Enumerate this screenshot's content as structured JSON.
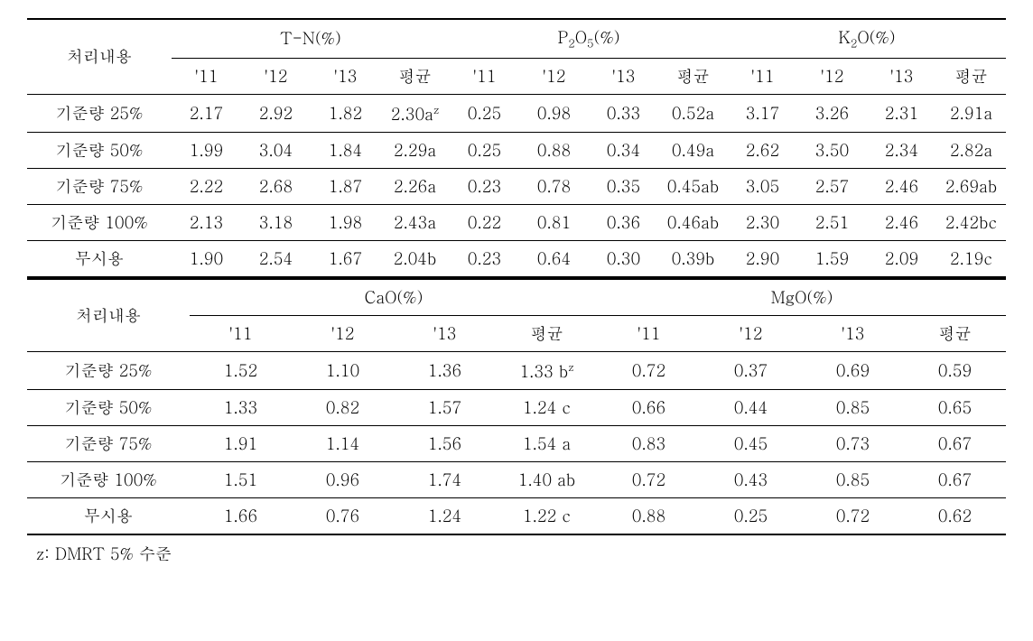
{
  "top_header_label": "처리내용",
  "top_groups": [
    {
      "name_html": "T-N(%)"
    },
    {
      "name_html": "P<span class=\"sub\">2</span>O<span class=\"sub\">5</span>(%)"
    },
    {
      "name_html": "K<span class=\"sub\">2</span>O(%)"
    }
  ],
  "top_subheaders": [
    "'11",
    "'12",
    "'13",
    "평균",
    "'11",
    "'12",
    "'13",
    "평균",
    "'11",
    "'12",
    "'13",
    "평균"
  ],
  "top_rows": [
    {
      "label": "기준량 25%",
      "vals": [
        "2.17",
        "2.92",
        "1.82",
        "2.30a<span class=\"sup\">z</span>",
        "0.25",
        "0.98",
        "0.33",
        "0.52a",
        "3.17",
        "3.26",
        "2.31",
        "2.91a"
      ]
    },
    {
      "label": "기준량 50%",
      "vals": [
        "1.99",
        "3.04",
        "1.84",
        "2.29a",
        "0.25",
        "0.88",
        "0.34",
        "0.49a",
        "2.62",
        "3.50",
        "2.34",
        "2.82a"
      ]
    },
    {
      "label": "기준량 75%",
      "vals": [
        "2.22",
        "2.68",
        "1.87",
        "2.26a",
        "0.23",
        "0.78",
        "0.35",
        "0.45ab",
        "3.05",
        "2.57",
        "2.46",
        "2.69ab"
      ]
    },
    {
      "label": "기준량 100%",
      "vals": [
        "2.13",
        "3.18",
        "1.98",
        "2.43a",
        "0.22",
        "0.81",
        "0.36",
        "0.46ab",
        "2.30",
        "2.51",
        "2.46",
        "2.42bc"
      ]
    },
    {
      "label": "무시용",
      "vals": [
        "1.90",
        "2.54",
        "1.67",
        "2.04b",
        "0.23",
        "0.64",
        "0.30",
        "0.39b",
        "2.90",
        "1.59",
        "2.09",
        "2.19c"
      ]
    }
  ],
  "bot_header_label": "처리내용",
  "bot_groups": [
    {
      "name_html": "CaO(%)"
    },
    {
      "name_html": "MgO(%)"
    }
  ],
  "bot_subheaders": [
    "'11",
    "'12",
    "'13",
    "평균",
    "'11",
    "'12",
    "'13",
    "평균"
  ],
  "bot_rows": [
    {
      "label": "기준량 25%",
      "vals": [
        "1.52",
        "1.10",
        "1.36",
        "1.33 b<span class=\"sup\">z</span>",
        "0.72",
        "0.37",
        "0.69",
        "0.59"
      ]
    },
    {
      "label": "기준량 50%",
      "vals": [
        "1.33",
        "0.82",
        "1.57",
        "1.24 c",
        "0.66",
        "0.44",
        "0.85",
        "0.65"
      ]
    },
    {
      "label": "기준량 75%",
      "vals": [
        "1.91",
        "1.14",
        "1.56",
        "1.54 a",
        "0.83",
        "0.45",
        "0.73",
        "0.67"
      ]
    },
    {
      "label": "기준량 100%",
      "vals": [
        "1.51",
        "0.96",
        "1.74",
        "1.40 ab",
        "0.72",
        "0.43",
        "0.85",
        "0.67"
      ]
    },
    {
      "label": "무시용",
      "vals": [
        "1.66",
        "0.76",
        "1.24",
        "1.22 c",
        "0.88",
        "0.25",
        "0.72",
        "0.62"
      ]
    }
  ],
  "footnote": "z: DMRT 5% 수준"
}
